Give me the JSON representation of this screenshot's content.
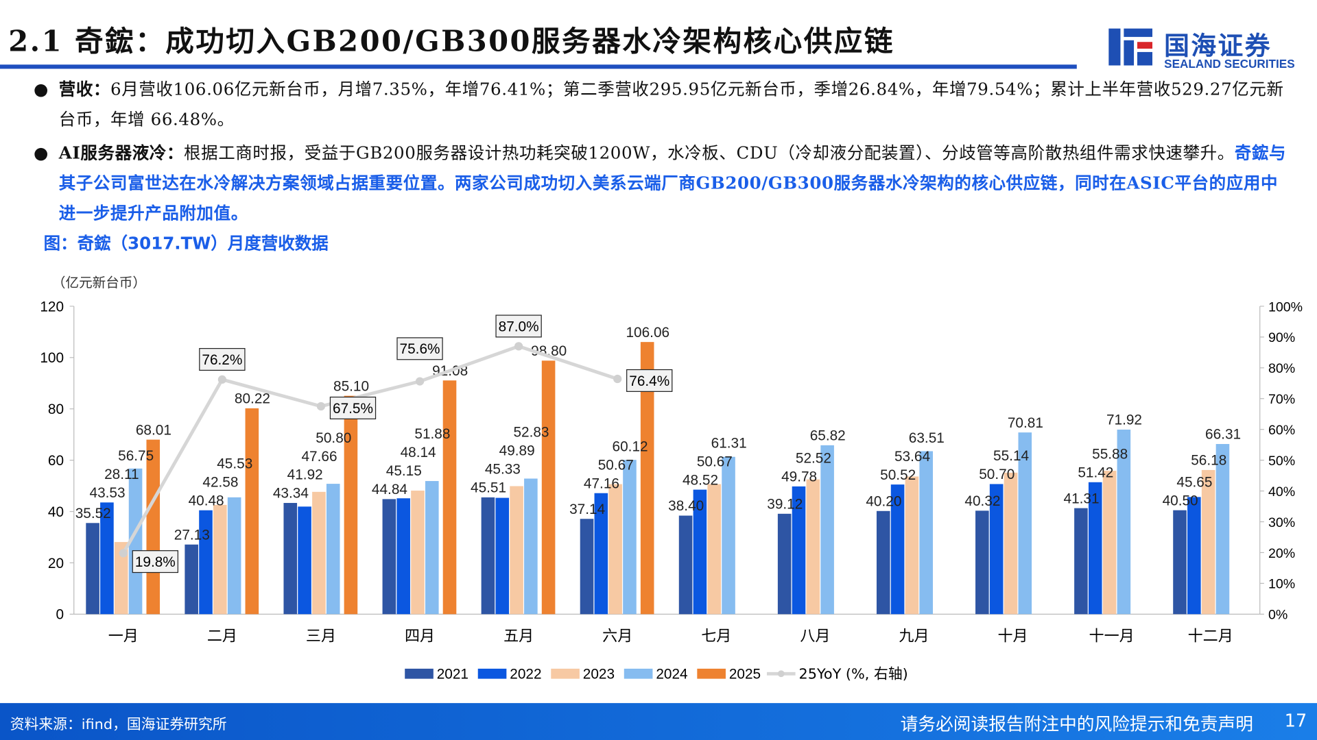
{
  "header": {
    "title": "2.1 奇鋐：成功切入GB200/GB300服务器水冷架构核心供应链",
    "logo_cn": "国海证券",
    "logo_en": "SEALAND SECURITIES"
  },
  "bullets": [
    {
      "label": "营收：",
      "text": "6月营收106.06亿元新台币，月增7.35%，年增76.41%；第二季营收295.95亿元新台币，季增26.84%，年增79.54%；累计上半年营收529.27亿元新台币，年增 66.48%。",
      "highlight": ""
    },
    {
      "label": "AI服务器液冷：",
      "text": "根据工商时报，受益于GB200服务器设计热功耗突破1200W，水冷板、CDU（冷却液分配装置）、分歧管等高阶散热组件需求快速攀升。",
      "highlight": "奇鋐与其子公司富世达在水冷解决方案领域占据重要位置。两家公司成功切入美系云端厂商GB200/GB300服务器水冷架构的核心供应链，同时在ASIC平台的应用中进一步提升产品附加值。"
    }
  ],
  "figure_title": "图：奇鋐（3017.TW）月度营收数据",
  "chart_data": {
    "type": "bar+line",
    "ylabel": "（亿元新台币）",
    "ylim": [
      0,
      120
    ],
    "yticks": [
      0,
      20,
      40,
      60,
      80,
      100,
      120
    ],
    "y2lim": [
      0,
      100
    ],
    "y2ticks": [
      "0%",
      "10%",
      "20%",
      "30%",
      "40%",
      "50%",
      "60%",
      "70%",
      "80%",
      "90%",
      "100%"
    ],
    "categories": [
      "一月",
      "二月",
      "三月",
      "四月",
      "五月",
      "六月",
      "七月",
      "八月",
      "九月",
      "十月",
      "十一月",
      "十二月"
    ],
    "series": [
      {
        "name": "2021",
        "color": "#2e55a4",
        "values": [
          35.52,
          27.13,
          43.34,
          44.84,
          45.51,
          37.14,
          38.4,
          39.12,
          40.2,
          40.32,
          41.31,
          40.5
        ]
      },
      {
        "name": "2022",
        "color": "#0b57e0",
        "values": [
          43.53,
          40.48,
          41.92,
          45.15,
          45.33,
          47.16,
          48.52,
          49.78,
          50.52,
          50.7,
          51.42,
          45.65
        ]
      },
      {
        "name": "2023",
        "color": "#f7c9a3",
        "values": [
          28.11,
          42.58,
          47.66,
          48.14,
          49.89,
          50.67,
          50.67,
          52.52,
          53.64,
          55.14,
          55.88,
          56.18
        ]
      },
      {
        "name": "2024",
        "color": "#86bcf0",
        "values": [
          56.75,
          45.53,
          50.8,
          51.88,
          52.83,
          60.12,
          61.31,
          65.82,
          63.51,
          70.81,
          71.92,
          66.31
        ]
      },
      {
        "name": "2025",
        "color": "#ee8230",
        "values": [
          68.01,
          80.22,
          85.1,
          91.08,
          98.8,
          106.06,
          null,
          null,
          null,
          null,
          null,
          null
        ]
      }
    ],
    "line": {
      "name": "25YoY (%, 右轴)",
      "color": "#d6d6d6",
      "values": [
        19.8,
        76.2,
        67.5,
        75.6,
        87.0,
        76.4
      ],
      "labels": [
        "19.8%",
        "76.2%",
        "67.5%",
        "75.6%",
        "87.0%",
        "76.4%"
      ]
    },
    "legend": "bottom",
    "grid": false
  },
  "footer": {
    "source": "资料来源：ifind，国海证券研究所",
    "disclaimer": "请务必阅读报告附注中的风险提示和免责声明",
    "page": "17"
  }
}
